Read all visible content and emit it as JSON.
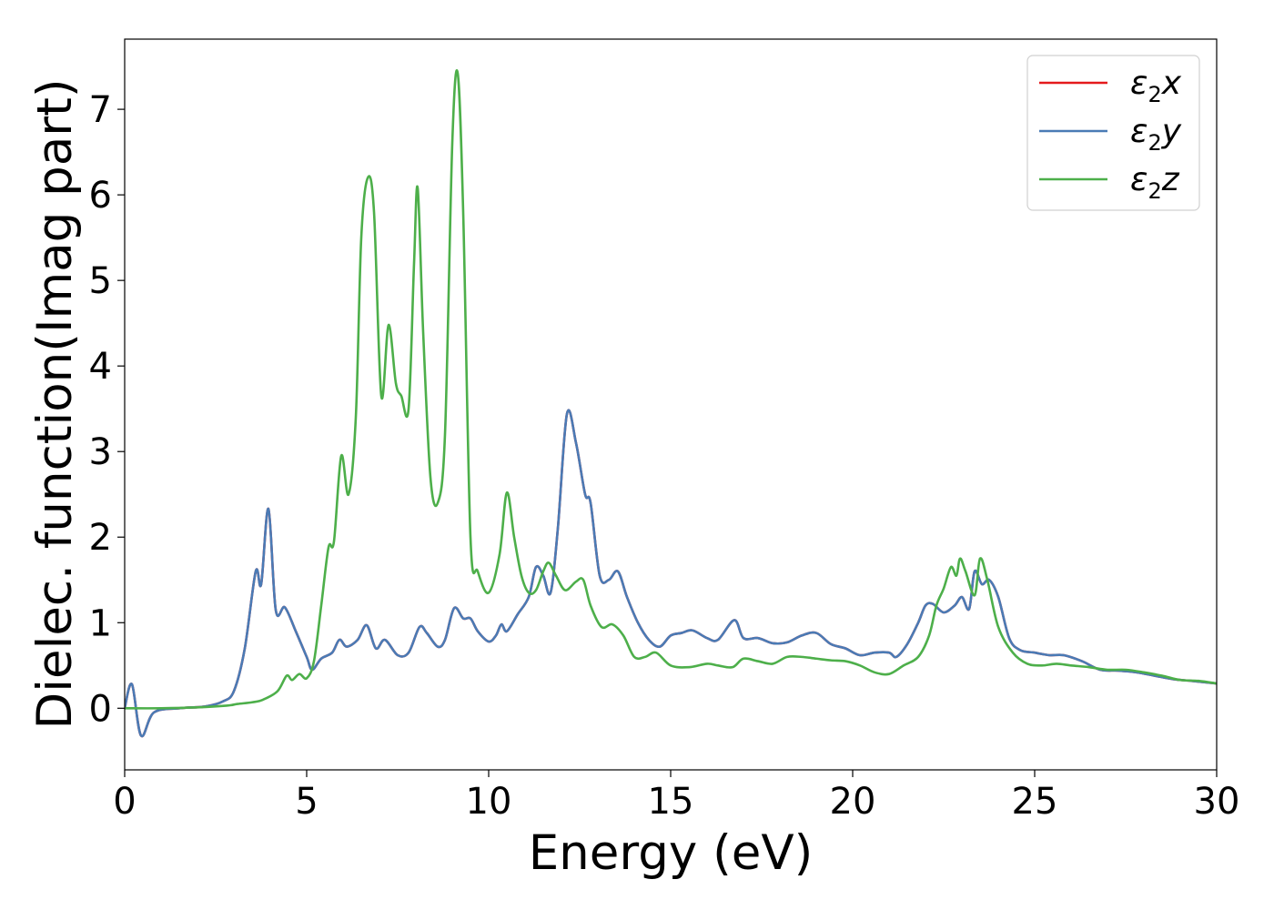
{
  "chart_data": {
    "type": "line",
    "title": "",
    "xlabel": "Energy (eV)",
    "ylabel": "Dielec. function(Imag part)",
    "xlim": [
      0,
      30
    ],
    "ylim": [
      -0.72,
      7.82
    ],
    "xticks": [
      0,
      5,
      10,
      15,
      20,
      25,
      30
    ],
    "yticks": [
      0,
      1,
      2,
      3,
      4,
      5,
      6,
      7
    ],
    "grid": false,
    "legend_position": "top-right",
    "legend": [
      {
        "symbol": "ε",
        "sub": "2",
        "var": "x"
      },
      {
        "symbol": "ε",
        "sub": "2",
        "var": "y"
      },
      {
        "symbol": "ε",
        "sub": "2",
        "var": "z"
      }
    ],
    "series": [
      {
        "name": "ε2x",
        "color": "#e41a1c",
        "x": [
          0,
          0.2,
          0.45,
          0.8,
          1.5,
          2.2,
          2.7,
          3.0,
          3.3,
          3.6,
          3.75,
          3.95,
          4.15,
          4.4,
          4.7,
          5.0,
          5.15,
          5.4,
          5.7,
          5.9,
          6.1,
          6.4,
          6.65,
          6.9,
          7.15,
          7.5,
          7.8,
          8.1,
          8.3,
          8.6,
          8.8,
          9.05,
          9.3,
          9.5,
          9.7,
          10.0,
          10.2,
          10.35,
          10.5,
          10.8,
          11.1,
          11.3,
          11.5,
          11.7,
          11.9,
          12.15,
          12.4,
          12.65,
          12.8,
          13.05,
          13.3,
          13.55,
          13.8,
          14.1,
          14.4,
          14.7,
          15.0,
          15.3,
          15.6,
          16.0,
          16.3,
          16.75,
          17.0,
          17.4,
          17.8,
          18.2,
          18.6,
          19.0,
          19.4,
          19.8,
          20.2,
          20.6,
          21.0,
          21.2,
          21.5,
          21.8,
          22.0,
          22.2,
          22.5,
          22.8,
          23.0,
          23.2,
          23.35,
          23.55,
          23.75,
          24.0,
          24.3,
          24.6,
          25.0,
          25.4,
          25.8,
          26.3,
          26.8,
          27.3,
          27.8,
          28.3,
          28.8,
          29.3,
          30.0
        ],
        "values": [
          0,
          0.28,
          -0.32,
          -0.05,
          0.0,
          0.02,
          0.08,
          0.2,
          0.7,
          1.6,
          1.45,
          2.33,
          1.15,
          1.18,
          0.9,
          0.6,
          0.45,
          0.58,
          0.65,
          0.8,
          0.72,
          0.8,
          0.97,
          0.7,
          0.8,
          0.62,
          0.65,
          0.95,
          0.88,
          0.72,
          0.8,
          1.17,
          1.05,
          1.05,
          0.9,
          0.78,
          0.85,
          0.98,
          0.9,
          1.1,
          1.3,
          1.65,
          1.55,
          1.35,
          2.1,
          3.44,
          3.1,
          2.5,
          2.4,
          1.55,
          1.5,
          1.6,
          1.3,
          1.0,
          0.8,
          0.72,
          0.85,
          0.88,
          0.91,
          0.82,
          0.8,
          1.03,
          0.82,
          0.82,
          0.76,
          0.77,
          0.85,
          0.88,
          0.75,
          0.7,
          0.62,
          0.65,
          0.65,
          0.6,
          0.75,
          1.0,
          1.2,
          1.22,
          1.12,
          1.2,
          1.3,
          1.16,
          1.6,
          1.45,
          1.5,
          1.3,
          0.82,
          0.68,
          0.65,
          0.62,
          0.62,
          0.55,
          0.45,
          0.44,
          0.42,
          0.38,
          0.34,
          0.32,
          0.29
        ]
      },
      {
        "name": "ε2y",
        "color": "#4a7bb5",
        "x": [
          0,
          0.2,
          0.45,
          0.8,
          1.5,
          2.2,
          2.7,
          3.0,
          3.3,
          3.6,
          3.75,
          3.95,
          4.15,
          4.4,
          4.7,
          5.0,
          5.15,
          5.4,
          5.7,
          5.9,
          6.1,
          6.4,
          6.65,
          6.9,
          7.15,
          7.5,
          7.8,
          8.1,
          8.3,
          8.6,
          8.8,
          9.05,
          9.3,
          9.5,
          9.7,
          10.0,
          10.2,
          10.35,
          10.5,
          10.8,
          11.1,
          11.3,
          11.5,
          11.7,
          11.9,
          12.15,
          12.4,
          12.65,
          12.8,
          13.05,
          13.3,
          13.55,
          13.8,
          14.1,
          14.4,
          14.7,
          15.0,
          15.3,
          15.6,
          16.0,
          16.3,
          16.75,
          17.0,
          17.4,
          17.8,
          18.2,
          18.6,
          19.0,
          19.4,
          19.8,
          20.2,
          20.6,
          21.0,
          21.2,
          21.5,
          21.8,
          22.0,
          22.2,
          22.5,
          22.8,
          23.0,
          23.2,
          23.35,
          23.55,
          23.75,
          24.0,
          24.3,
          24.6,
          25.0,
          25.4,
          25.8,
          26.3,
          26.8,
          27.3,
          27.8,
          28.3,
          28.8,
          29.3,
          30.0
        ],
        "values": [
          0,
          0.28,
          -0.32,
          -0.05,
          0.0,
          0.02,
          0.08,
          0.2,
          0.7,
          1.6,
          1.45,
          2.33,
          1.15,
          1.18,
          0.9,
          0.6,
          0.45,
          0.58,
          0.65,
          0.8,
          0.72,
          0.8,
          0.97,
          0.7,
          0.8,
          0.62,
          0.65,
          0.95,
          0.88,
          0.72,
          0.8,
          1.17,
          1.05,
          1.05,
          0.9,
          0.78,
          0.85,
          0.98,
          0.9,
          1.1,
          1.3,
          1.65,
          1.55,
          1.35,
          2.1,
          3.44,
          3.1,
          2.5,
          2.4,
          1.55,
          1.5,
          1.6,
          1.3,
          1.0,
          0.8,
          0.72,
          0.85,
          0.88,
          0.91,
          0.82,
          0.8,
          1.03,
          0.82,
          0.82,
          0.76,
          0.77,
          0.85,
          0.88,
          0.75,
          0.7,
          0.62,
          0.65,
          0.65,
          0.6,
          0.75,
          1.0,
          1.2,
          1.22,
          1.12,
          1.2,
          1.3,
          1.16,
          1.6,
          1.45,
          1.5,
          1.3,
          0.82,
          0.68,
          0.65,
          0.62,
          0.62,
          0.55,
          0.45,
          0.44,
          0.42,
          0.38,
          0.34,
          0.32,
          0.29
        ]
      },
      {
        "name": "ε2z",
        "color": "#4daf4a",
        "x": [
          0,
          1.0,
          2.0,
          2.8,
          3.1,
          3.5,
          3.8,
          4.2,
          4.45,
          4.6,
          4.8,
          5.0,
          5.2,
          5.4,
          5.6,
          5.75,
          5.95,
          6.15,
          6.35,
          6.5,
          6.68,
          6.85,
          7.05,
          7.25,
          7.45,
          7.6,
          7.8,
          7.95,
          8.05,
          8.2,
          8.4,
          8.6,
          8.8,
          9.0,
          9.15,
          9.3,
          9.5,
          9.7,
          10.0,
          10.3,
          10.5,
          10.7,
          10.9,
          11.1,
          11.3,
          11.5,
          11.65,
          11.85,
          12.1,
          12.4,
          12.6,
          12.8,
          13.1,
          13.4,
          13.7,
          14.0,
          14.3,
          14.6,
          15.0,
          15.5,
          16.0,
          16.3,
          16.7,
          17.0,
          17.4,
          17.8,
          18.2,
          18.6,
          19.0,
          19.4,
          19.8,
          20.2,
          20.6,
          21.0,
          21.4,
          21.8,
          22.1,
          22.3,
          22.5,
          22.7,
          22.85,
          22.95,
          23.1,
          23.35,
          23.5,
          23.7,
          24.0,
          24.4,
          24.8,
          25.2,
          25.6,
          26.0,
          26.5,
          27.0,
          27.5,
          28.0,
          28.5,
          29.0,
          29.5,
          30.0
        ],
        "values": [
          0,
          0.0,
          0.01,
          0.03,
          0.05,
          0.07,
          0.1,
          0.2,
          0.38,
          0.33,
          0.4,
          0.35,
          0.55,
          1.2,
          1.88,
          1.95,
          2.95,
          2.5,
          3.4,
          5.5,
          6.2,
          5.8,
          3.65,
          4.48,
          3.8,
          3.65,
          3.5,
          5.2,
          6.08,
          4.4,
          2.7,
          2.4,
          3.2,
          6.6,
          7.42,
          5.8,
          2.0,
          1.6,
          1.35,
          1.8,
          2.52,
          2.0,
          1.55,
          1.35,
          1.38,
          1.6,
          1.7,
          1.55,
          1.38,
          1.48,
          1.5,
          1.2,
          0.95,
          0.98,
          0.85,
          0.6,
          0.6,
          0.65,
          0.5,
          0.48,
          0.52,
          0.5,
          0.48,
          0.58,
          0.55,
          0.52,
          0.6,
          0.6,
          0.58,
          0.56,
          0.55,
          0.5,
          0.42,
          0.4,
          0.5,
          0.6,
          0.85,
          1.2,
          1.4,
          1.65,
          1.55,
          1.75,
          1.6,
          1.32,
          1.75,
          1.5,
          0.95,
          0.65,
          0.52,
          0.5,
          0.52,
          0.5,
          0.48,
          0.45,
          0.45,
          0.42,
          0.38,
          0.33,
          0.32,
          0.29
        ]
      }
    ]
  }
}
